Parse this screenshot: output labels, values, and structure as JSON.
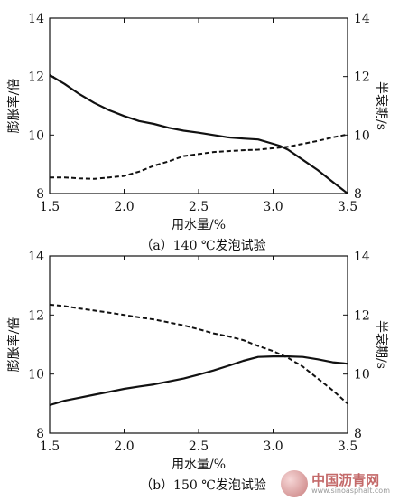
{
  "chart_data": [
    {
      "type": "line",
      "caption": "（a）140 ℃发泡试验",
      "xlabel": "用水量/%",
      "ylabel_left": "膨胀率/倍",
      "ylabel_right": "半衰期/s",
      "xlim": [
        1.5,
        3.5
      ],
      "ylim_left": [
        8,
        14
      ],
      "ylim_right": [
        8,
        14
      ],
      "xticks": [
        "1.5",
        "2.0",
        "2.5",
        "3.0",
        "3.5"
      ],
      "yticks_left": [
        "8",
        "10",
        "12",
        "14"
      ],
      "yticks_right": [
        "8",
        "10",
        "12",
        "14"
      ],
      "series": [
        {
          "style": "solid",
          "axis": "left",
          "x": [
            1.5,
            1.6,
            1.7,
            1.8,
            1.9,
            2.0,
            2.1,
            2.2,
            2.3,
            2.4,
            2.5,
            2.6,
            2.7,
            2.8,
            2.9,
            3.0,
            3.05,
            3.1,
            3.2,
            3.3,
            3.4,
            3.5
          ],
          "y": [
            12.05,
            11.75,
            11.4,
            11.1,
            10.85,
            10.65,
            10.48,
            10.38,
            10.25,
            10.15,
            10.08,
            10.0,
            9.92,
            9.88,
            9.85,
            9.7,
            9.62,
            9.5,
            9.15,
            8.8,
            8.4,
            8.0
          ]
        },
        {
          "style": "dashed",
          "axis": "right",
          "x": [
            1.5,
            1.6,
            1.7,
            1.8,
            1.9,
            2.0,
            2.1,
            2.2,
            2.3,
            2.4,
            2.5,
            2.6,
            2.7,
            2.8,
            2.9,
            3.0,
            3.1,
            3.2,
            3.3,
            3.4,
            3.5
          ],
          "y": [
            8.55,
            8.55,
            8.52,
            8.5,
            8.55,
            8.6,
            8.75,
            8.95,
            9.1,
            9.28,
            9.35,
            9.42,
            9.45,
            9.48,
            9.5,
            9.55,
            9.6,
            9.7,
            9.8,
            9.92,
            10.02
          ]
        }
      ]
    },
    {
      "type": "line",
      "caption": "（b）150 ℃发泡试验",
      "xlabel": "用水量/%",
      "ylabel_left": "膨胀率/倍",
      "ylabel_right": "半衰期/s",
      "xlim": [
        1.5,
        3.5
      ],
      "ylim_left": [
        8,
        14
      ],
      "ylim_right": [
        8,
        14
      ],
      "xticks": [
        "1.5",
        "2.0",
        "2.5",
        "3.0",
        "3.5"
      ],
      "yticks_left": [
        "8",
        "10",
        "12",
        "14"
      ],
      "yticks_right": [
        "8",
        "10",
        "12",
        "14"
      ],
      "series": [
        {
          "style": "solid",
          "axis": "left",
          "x": [
            1.5,
            1.6,
            1.7,
            1.8,
            1.9,
            2.0,
            2.1,
            2.2,
            2.3,
            2.4,
            2.5,
            2.6,
            2.7,
            2.8,
            2.9,
            3.0,
            3.1,
            3.2,
            3.3,
            3.4,
            3.5
          ],
          "y": [
            8.95,
            9.1,
            9.2,
            9.3,
            9.4,
            9.5,
            9.58,
            9.65,
            9.75,
            9.85,
            9.98,
            10.12,
            10.28,
            10.45,
            10.58,
            10.6,
            10.6,
            10.58,
            10.5,
            10.4,
            10.35
          ]
        },
        {
          "style": "dashed",
          "axis": "right",
          "x": [
            1.5,
            1.6,
            1.7,
            1.8,
            1.9,
            2.0,
            2.1,
            2.2,
            2.3,
            2.4,
            2.5,
            2.6,
            2.7,
            2.8,
            2.9,
            3.0,
            3.1,
            3.2,
            3.3,
            3.4,
            3.5
          ],
          "y": [
            12.35,
            12.3,
            12.22,
            12.15,
            12.08,
            12.0,
            11.92,
            11.85,
            11.75,
            11.65,
            11.52,
            11.38,
            11.28,
            11.15,
            10.95,
            10.78,
            10.55,
            10.25,
            9.85,
            9.45,
            9.0
          ]
        }
      ]
    }
  ],
  "watermark": {
    "title": "中国沥青网",
    "url": "www.sinoasphalt.com"
  }
}
